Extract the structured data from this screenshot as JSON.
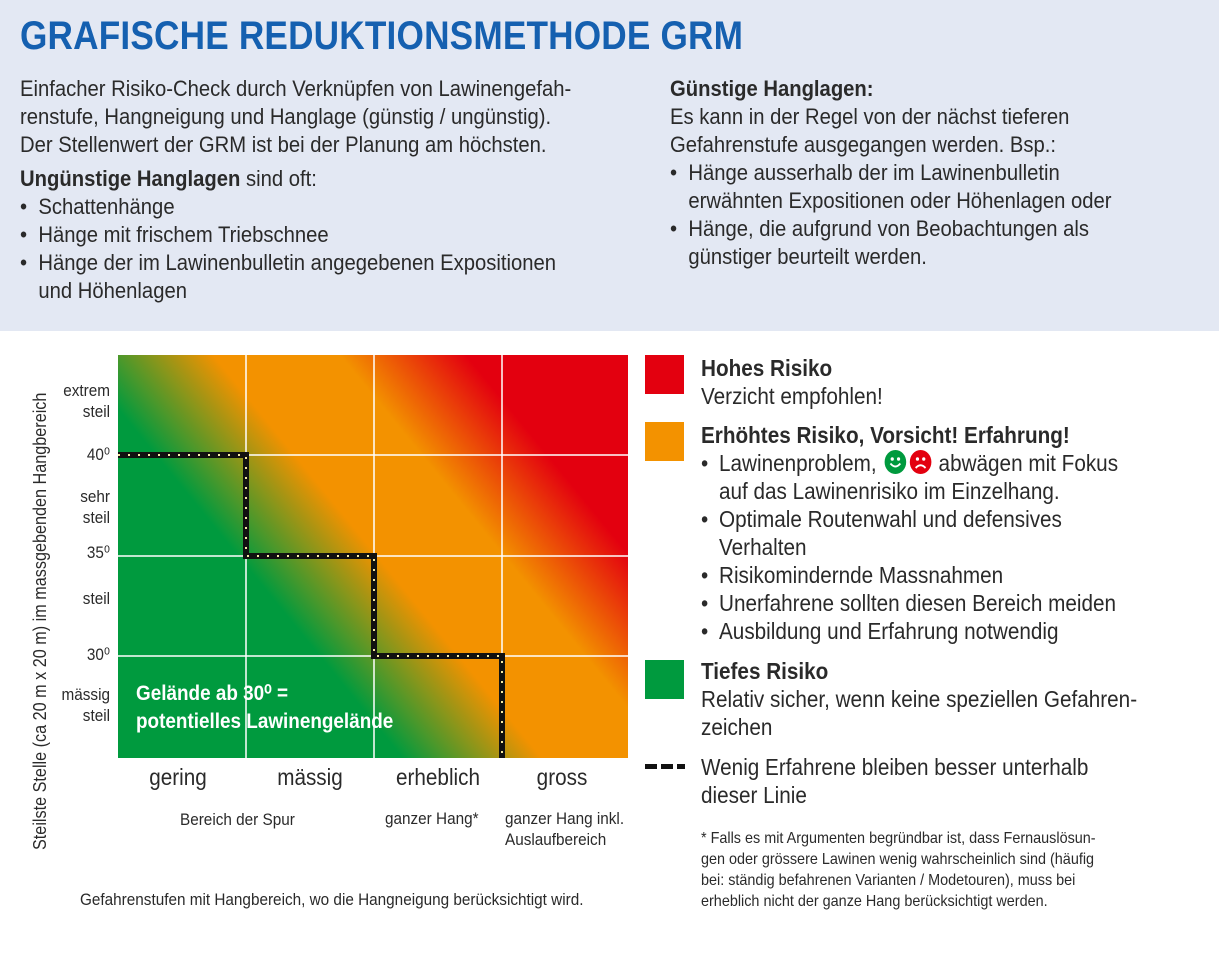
{
  "title": "GRAFISCHE REDUKTIONSMETHODE GRM",
  "intro": {
    "lines": [
      "Einfacher Risiko-Check durch Verknüpfen von Lawinengefah-",
      "renstufe, Hangneigung und Hanglage (günstig / ungünstig).",
      "Der Stellenwert der GRM ist bei der Planung am höchsten."
    ],
    "unfav_heading": "Ungünstige Hanglagen",
    "unfav_suffix": " sind oft:",
    "unfav_items": [
      "Schattenhänge",
      "Hänge mit frischem Triebschnee",
      "Hänge der im Lawinenbulletin angegebenen Expositionen",
      "und Höhenlagen"
    ]
  },
  "favorable": {
    "heading": "Günstige Hanglagen:",
    "lines": [
      "Es kann in der Regel von der nächst tieferen",
      "Gefahrenstufe ausgegangen werden. Bsp.:"
    ],
    "items": [
      [
        "Hänge ausserhalb der im Lawinenbulletin",
        "erwähnten Expositionen oder Höhenlagen oder"
      ],
      [
        "Hänge, die aufgrund von Beobachtungen als",
        "günstiger beurteilt werden."
      ]
    ]
  },
  "chart_data": {
    "type": "heatmap",
    "ylabel": "Steilste Stelle (ca 20 m x 20 m) im massgebenden Hangbereich",
    "y_ticks": [
      "40⁰",
      "35⁰",
      "30⁰"
    ],
    "y_bands": [
      [
        "extrem",
        "steil"
      ],
      [
        "sehr",
        "steil"
      ],
      [
        "steil"
      ],
      [
        "mässig",
        "steil"
      ]
    ],
    "x_categories": [
      "gering",
      "mässig",
      "erheblich",
      "gross"
    ],
    "x_sub": [
      "Bereich der Spur",
      "ganzer Hang*",
      "ganzer Hang inkl.",
      "Auslaufbereich"
    ],
    "overlay": [
      "Gelände ab 30⁰ =",
      "potentielles Lawinengelände"
    ],
    "caption": "Gefahrenstufen mit Hangbereich, wo die Hangneigung berücksichtigt wird.",
    "colors": {
      "high": "#e3000f",
      "mid": "#f39200",
      "low": "#009a3e"
    }
  },
  "legend": {
    "high_title": "Hohes Risiko",
    "high_text": "Verzicht empfohlen!",
    "mid_title": "Erhöhtes Risiko, Vorsicht! Erfahrung!",
    "mid_item1_a": "Lawinenproblem,",
    "mid_item1_b": "abwägen mit Fokus",
    "mid_item1_c": "auf das Lawinenrisiko im Einzelhang.",
    "mid_items": [
      [
        "Optimale Routenwahl und defensives",
        "Verhalten"
      ],
      [
        "Risikomindernde Massnahmen"
      ],
      [
        "Unerfahrene sollten diesen Bereich meiden"
      ],
      [
        "Ausbildung und Erfahrung notwendig"
      ]
    ],
    "low_title": "Tiefes Risiko",
    "low_text": [
      "Relativ sicher, wenn keine speziellen Gefahren-",
      "zeichen"
    ],
    "line_text": [
      "Wenig Erfahrene bleiben besser unterhalb",
      "dieser Linie"
    ],
    "footnote": [
      "* Falls es mit Argumenten begründbar ist, dass Fernauslösun-",
      "gen oder grössere Lawinen wenig wahrscheinlich sind (häufig",
      "bei: ständig befahrenen Varianten / Modetouren), muss bei",
      "erheblich nicht der ganze Hang berücksichtigt werden."
    ]
  }
}
